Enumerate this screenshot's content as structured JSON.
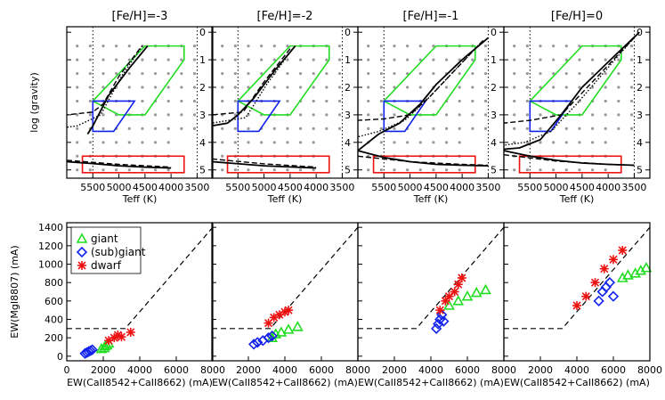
{
  "colors": {
    "giant": "#22dd22",
    "subgiant": "#1122ee",
    "dwarf": "#ee1111",
    "grid_points": "#999999",
    "isochrone": "#000000"
  },
  "top_panels": [
    {
      "title": "[Fe/H]=-3",
      "tracks": [
        {
          "style": "solid",
          "points": [
            [
              4450,
              0.5
            ],
            [
              4800,
              1.3
            ],
            [
              5200,
              2.3
            ],
            [
              5500,
              3.4
            ],
            [
              5600,
              3.7
            ]
          ]
        },
        {
          "style": "dashed",
          "points": [
            [
              4600,
              0.6
            ],
            [
              5000,
              1.6
            ],
            [
              5300,
              2.6
            ],
            [
              5500,
              2.9
            ],
            [
              6000,
              3.0
            ]
          ]
        },
        {
          "style": "dotted",
          "points": [
            [
              4550,
              0.5
            ],
            [
              4950,
              1.6
            ],
            [
              5350,
              3.0
            ],
            [
              5800,
              3.4
            ],
            [
              6000,
              3.45
            ]
          ]
        },
        {
          "style": "solid",
          "points": [
            [
              6000,
              4.7
            ],
            [
              5500,
              4.77
            ],
            [
              5000,
              4.85
            ],
            [
              4500,
              4.9
            ],
            [
              4000,
              4.93
            ]
          ]
        },
        {
          "style": "dashed",
          "points": [
            [
              6000,
              4.65
            ],
            [
              5000,
              4.8
            ],
            [
              4000,
              4.9
            ]
          ]
        }
      ]
    },
    {
      "title": "[Fe/H]=-2",
      "tracks": [
        {
          "style": "solid",
          "points": [
            [
              4400,
              0.5
            ],
            [
              4800,
              1.4
            ],
            [
              5200,
              2.4
            ],
            [
              5500,
              3.0
            ],
            [
              5700,
              3.3
            ],
            [
              6000,
              3.4
            ]
          ]
        },
        {
          "style": "dashed",
          "points": [
            [
              4500,
              0.6
            ],
            [
              5000,
              1.8
            ],
            [
              5400,
              2.9
            ],
            [
              6000,
              3.0
            ]
          ]
        },
        {
          "style": "dotted",
          "points": [
            [
              4450,
              0.6
            ],
            [
              4950,
              1.9
            ],
            [
              5350,
              3.1
            ],
            [
              6000,
              3.3
            ]
          ]
        },
        {
          "style": "solid",
          "points": [
            [
              6000,
              4.7
            ],
            [
              5000,
              4.85
            ],
            [
              4000,
              4.93
            ]
          ]
        },
        {
          "style": "dashed",
          "points": [
            [
              6000,
              4.6
            ],
            [
              5000,
              4.78
            ],
            [
              4000,
              4.9
            ]
          ]
        }
      ]
    },
    {
      "title": "[Fe/H]=-1",
      "tracks": [
        {
          "style": "solid",
          "points": [
            [
              3500,
              0.2
            ],
            [
              4000,
              1.0
            ],
            [
              4500,
              1.9
            ],
            [
              4800,
              2.6
            ],
            [
              5200,
              3.3
            ],
            [
              5600,
              3.7
            ],
            [
              6000,
              4.3
            ]
          ]
        },
        {
          "style": "dashed",
          "points": [
            [
              3600,
              0.3
            ],
            [
              4100,
              1.3
            ],
            [
              4600,
              2.3
            ],
            [
              5000,
              3.0
            ],
            [
              5500,
              3.15
            ],
            [
              6000,
              3.2
            ]
          ]
        },
        {
          "style": "dotted",
          "points": [
            [
              3650,
              0.4
            ],
            [
              4200,
              1.5
            ],
            [
              4700,
              2.5
            ],
            [
              5100,
              3.2
            ],
            [
              5600,
              3.6
            ],
            [
              6000,
              3.8
            ]
          ]
        },
        {
          "style": "solid",
          "points": [
            [
              6000,
              4.3
            ],
            [
              5500,
              4.55
            ],
            [
              5000,
              4.7
            ],
            [
              4500,
              4.8
            ],
            [
              4000,
              4.83
            ],
            [
              3500,
              4.85
            ]
          ]
        },
        {
          "style": "dashed",
          "points": [
            [
              6000,
              4.5
            ],
            [
              5000,
              4.7
            ],
            [
              4000,
              4.8
            ],
            [
              3500,
              4.83
            ]
          ]
        }
      ]
    },
    {
      "title": "[Fe/H]=0",
      "tracks": [
        {
          "style": "solid",
          "points": [
            [
              3400,
              0.0
            ],
            [
              3900,
              0.9
            ],
            [
              4500,
              2.0
            ],
            [
              4900,
              3.0
            ],
            [
              5300,
              3.9
            ],
            [
              5700,
              4.2
            ],
            [
              6000,
              4.25
            ]
          ]
        },
        {
          "style": "dashed",
          "points": [
            [
              3500,
              0.2
            ],
            [
              4000,
              1.2
            ],
            [
              4500,
              2.2
            ],
            [
              4900,
              3.0
            ],
            [
              5500,
              3.2
            ],
            [
              6000,
              3.3
            ]
          ]
        },
        {
          "style": "dotted",
          "points": [
            [
              3550,
              0.3
            ],
            [
              4100,
              1.5
            ],
            [
              4600,
              2.6
            ],
            [
              5100,
              3.6
            ],
            [
              5600,
              4.0
            ],
            [
              6000,
              4.1
            ]
          ]
        },
        {
          "style": "solid",
          "points": [
            [
              6000,
              4.3
            ],
            [
              5500,
              4.5
            ],
            [
              5000,
              4.65
            ],
            [
              4500,
              4.75
            ],
            [
              4000,
              4.8
            ],
            [
              3500,
              4.83
            ]
          ]
        },
        {
          "style": "dashed",
          "points": [
            [
              6000,
              4.45
            ],
            [
              5000,
              4.68
            ],
            [
              4000,
              4.8
            ],
            [
              3500,
              4.83
            ]
          ]
        }
      ]
    }
  ],
  "top_axes": {
    "xlabel": "Teff  (K)",
    "ylabel": "log  (gravity)",
    "xlim": [
      6000,
      3200
    ],
    "ylim": [
      5.3,
      -0.2
    ],
    "xticks": [
      "5500",
      "5000",
      "4500",
      "4000",
      "3500"
    ],
    "yticks": [
      "0",
      "1",
      "2",
      "3",
      "4",
      "5"
    ]
  },
  "bottom_axes": {
    "xlabel": "EW(CaII8542+CaII8662)  (mA)",
    "ylabel": "EW(MgI8807)  (mA)",
    "xlim": [
      0,
      8000
    ],
    "ylim": [
      -50,
      1450
    ],
    "xticks": [
      "0",
      "2000",
      "4000",
      "6000",
      "8000"
    ],
    "yticks": [
      "0",
      "200",
      "400",
      "600",
      "800",
      "1000",
      "1200",
      "1400"
    ],
    "threshold_line": [
      [
        0,
        300
      ],
      [
        3200,
        300
      ],
      [
        8000,
        1400
      ]
    ]
  },
  "legend": {
    "items": [
      {
        "symbol": "triangle",
        "label": "giant"
      },
      {
        "symbol": "diamond",
        "label": "(sub)giant"
      },
      {
        "symbol": "asterisk",
        "label": "dwarf"
      }
    ]
  },
  "chart_data": [
    {
      "type": "line",
      "title": "[Fe/H]=-3",
      "xlabel": "Teff  (K)",
      "ylabel": "log  (gravity)"
    },
    {
      "type": "line",
      "title": "[Fe/H]=-2",
      "xlabel": "Teff  (K)"
    },
    {
      "type": "line",
      "title": "[Fe/H]=-1",
      "xlabel": "Teff  (K)"
    },
    {
      "type": "line",
      "title": "[Fe/H]=0",
      "xlabel": "Teff  (K)"
    },
    {
      "type": "scatter",
      "xlabel": "EW(CaII8542+CaII8662)  (mA)",
      "ylabel": "EW(MgI8807)  (mA)",
      "series": [
        {
          "name": "giant",
          "points": [
            [
              1900,
              80
            ],
            [
              2100,
              110
            ],
            [
              2300,
              140
            ],
            [
              2050,
              90
            ],
            [
              2200,
              120
            ]
          ]
        },
        {
          "name": "(sub)giant",
          "points": [
            [
              1000,
              30
            ],
            [
              1100,
              40
            ],
            [
              1200,
              50
            ],
            [
              1300,
              60
            ],
            [
              1400,
              70
            ]
          ]
        },
        {
          "name": "dwarf",
          "points": [
            [
              2300,
              170
            ],
            [
              2600,
              200
            ],
            [
              2800,
              230
            ],
            [
              3000,
              210
            ],
            [
              3500,
              260
            ]
          ]
        }
      ]
    },
    {
      "type": "scatter",
      "xlabel": "EW(CaII8542+CaII8662)  (mA)",
      "series": [
        {
          "name": "giant",
          "points": [
            [
              3300,
              200
            ],
            [
              3500,
              240
            ],
            [
              3800,
              260
            ],
            [
              4200,
              290
            ],
            [
              4700,
              320
            ]
          ]
        },
        {
          "name": "(sub)giant",
          "points": [
            [
              2300,
              130
            ],
            [
              2500,
              150
            ],
            [
              2800,
              170
            ],
            [
              3100,
              200
            ],
            [
              3300,
              220
            ]
          ]
        },
        {
          "name": "dwarf",
          "points": [
            [
              3100,
              360
            ],
            [
              3400,
              420
            ],
            [
              3700,
              450
            ],
            [
              4000,
              480
            ],
            [
              4200,
              500
            ]
          ]
        }
      ]
    },
    {
      "type": "scatter",
      "xlabel": "EW(CaII8542+CaII8662)  (mA)",
      "series": [
        {
          "name": "giant",
          "points": [
            [
              5000,
              550
            ],
            [
              5500,
              600
            ],
            [
              6000,
              650
            ],
            [
              6500,
              690
            ],
            [
              7000,
              720
            ]
          ]
        },
        {
          "name": "(sub)giant",
          "points": [
            [
              4300,
              300
            ],
            [
              4400,
              350
            ],
            [
              4500,
              400
            ],
            [
              4600,
              450
            ],
            [
              4700,
              380
            ]
          ]
        },
        {
          "name": "dwarf",
          "points": [
            [
              4500,
              500
            ],
            [
              4800,
              600
            ],
            [
              5000,
              650
            ],
            [
              5300,
              700
            ],
            [
              5500,
              780
            ],
            [
              5700,
              850
            ]
          ]
        }
      ]
    },
    {
      "type": "scatter",
      "xlabel": "EW(CaII8542+CaII8662)  (mA)",
      "series": [
        {
          "name": "giant",
          "points": [
            [
              6500,
              850
            ],
            [
              6800,
              880
            ],
            [
              7200,
              900
            ],
            [
              7500,
              930
            ],
            [
              7800,
              960
            ]
          ]
        },
        {
          "name": "(sub)giant",
          "points": [
            [
              5200,
              600
            ],
            [
              5400,
              700
            ],
            [
              5600,
              750
            ],
            [
              5800,
              800
            ],
            [
              6000,
              650
            ]
          ]
        },
        {
          "name": "dwarf",
          "points": [
            [
              4000,
              550
            ],
            [
              4500,
              650
            ],
            [
              5000,
              800
            ],
            [
              5500,
              950
            ],
            [
              6000,
              1050
            ],
            [
              6500,
              1150
            ]
          ]
        }
      ]
    }
  ]
}
